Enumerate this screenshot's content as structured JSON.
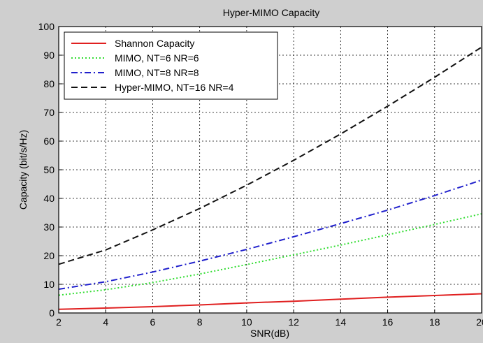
{
  "chart_data": {
    "type": "line",
    "title": "Hyper-MIMO Capacity",
    "xlabel": "SNR(dB)",
    "ylabel": "Capacity (bit/s/Hz)",
    "xlim": [
      2,
      20
    ],
    "ylim": [
      0,
      100
    ],
    "xticks": [
      2,
      4,
      6,
      8,
      10,
      12,
      14,
      16,
      18,
      20
    ],
    "xtick_labels": [
      "2",
      "4",
      "6",
      "8",
      "10",
      "12",
      "14",
      "16",
      "18",
      "20"
    ],
    "yticks": [
      0,
      10,
      20,
      30,
      40,
      50,
      60,
      70,
      80,
      90,
      100
    ],
    "ytick_labels": [
      "0",
      "10",
      "20",
      "30",
      "40",
      "50",
      "60",
      "70",
      "80",
      "90",
      "100"
    ],
    "grid": true,
    "legend_position": "top-left",
    "x": [
      2,
      4,
      6,
      8,
      10,
      12,
      14,
      16,
      18,
      20
    ],
    "series": [
      {
        "name": "Shannon Capacity",
        "color": "#e02020",
        "style": "solid",
        "values": [
          1.3,
          1.7,
          2.2,
          2.8,
          3.5,
          4.1,
          4.8,
          5.5,
          6.1,
          6.7
        ]
      },
      {
        "name": "MIMO, NT=6 NR=6",
        "color": "#33dd33",
        "style": "dotted",
        "values": [
          6.2,
          8.1,
          10.6,
          13.6,
          16.9,
          20.3,
          23.7,
          27.3,
          30.9,
          34.6
        ]
      },
      {
        "name": "MIMO, NT=8 NR=8",
        "color": "#2020cc",
        "style": "dashdot",
        "values": [
          8.3,
          10.9,
          14.3,
          18.1,
          22.2,
          26.6,
          31.2,
          35.9,
          41.0,
          46.4
        ]
      },
      {
        "name": "Hyper-MIMO, NT=16 NR=4",
        "color": "#111111",
        "style": "dashed",
        "values": [
          17.0,
          22.0,
          29.0,
          36.5,
          44.6,
          53.3,
          62.5,
          72.2,
          82.3,
          92.8
        ]
      }
    ]
  }
}
